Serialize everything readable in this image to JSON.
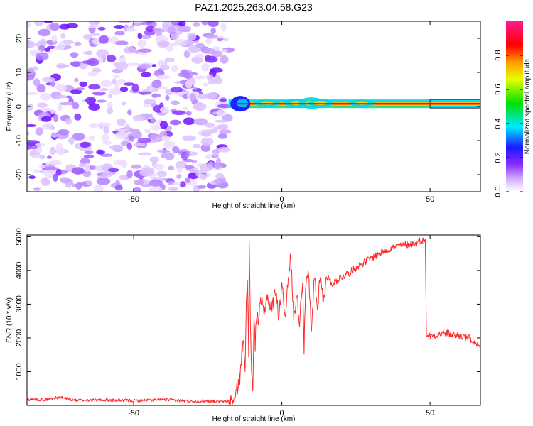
{
  "title": "PAZ1.2025.263.04.58.G23",
  "chart_data": [
    {
      "type": "heatmap",
      "name": "spectrogram",
      "xlabel": "Height of straight line (km)",
      "ylabel": "Frequency (Hz)",
      "xlim": [
        -86,
        67
      ],
      "ylim": [
        -25,
        25
      ],
      "xticks": [
        -50,
        0,
        50
      ],
      "xtick_labels": [
        "-50",
        "0",
        "50"
      ],
      "yticks": [
        -20,
        -10,
        0,
        10,
        20
      ],
      "ytick_labels": [
        "-20",
        "-10",
        "0",
        "10",
        "20"
      ],
      "noise_region_km": [
        -86,
        -18
      ],
      "signal_line": {
        "x_start_km": -18,
        "x_end_km": 67,
        "frequency_hz": 0.8,
        "peak_amplitude": 0.9,
        "narrow_beyond_km": 50
      },
      "colorbar": {
        "label": "Normalized spectral amplitude",
        "range": [
          0,
          1
        ],
        "ticks": [
          0.0,
          0.2,
          0.4,
          0.6,
          0.8
        ],
        "tick_labels": [
          "0.0",
          "0.2",
          "0.4",
          "0.6",
          "0.8"
        ],
        "colors": [
          "#ffffff",
          "#9a4dff",
          "#1a1aff",
          "#00e0ff",
          "#00e000",
          "#ffff00",
          "#ff9a00",
          "#ff0000",
          "#ff0099"
        ]
      }
    },
    {
      "type": "line",
      "name": "snr",
      "xlabel": "Height of straight line (km)",
      "ylabel": "SNR (10 * v/v)",
      "xlim": [
        -86,
        67
      ],
      "ylim": [
        0,
        5050
      ],
      "xticks": [
        -50,
        0,
        50
      ],
      "xtick_labels": [
        "-50",
        "0",
        "50"
      ],
      "yticks": [
        1000,
        2000,
        3000,
        4000,
        5000
      ],
      "ytick_labels": [
        "1000",
        "2000",
        "3000",
        "4000",
        "5000"
      ],
      "color": "#ff2a2a",
      "x": [
        -86,
        -80,
        -75,
        -70,
        -60,
        -50,
        -40,
        -30,
        -25,
        -20,
        -16,
        -14,
        -13,
        -12.4,
        -12,
        -11.6,
        -11.2,
        -11,
        -10.6,
        -10.2,
        -9.8,
        -9.4,
        -9,
        -8.5,
        -8,
        -7,
        -6,
        -5,
        -4,
        -3,
        -2,
        -1,
        0,
        1,
        2,
        3,
        4,
        5,
        6,
        7,
        7.5,
        8,
        9,
        10,
        11,
        12,
        13,
        14,
        15,
        17,
        20,
        23,
        26,
        30,
        35,
        40,
        45,
        47,
        48.4,
        48.8,
        50,
        55,
        60,
        63,
        65,
        67
      ],
      "values": [
        180,
        170,
        240,
        150,
        160,
        140,
        170,
        120,
        130,
        110,
        150,
        900,
        2100,
        1200,
        2900,
        3600,
        1500,
        4900,
        2400,
        1100,
        300,
        2500,
        1800,
        2800,
        2500,
        3100,
        2700,
        3300,
        2900,
        3000,
        3500,
        2500,
        3700,
        2700,
        3500,
        4450,
        2600,
        3300,
        2500,
        3800,
        1700,
        3500,
        3900,
        2100,
        3900,
        2800,
        4000,
        3000,
        3850,
        3600,
        3800,
        3950,
        4150,
        4350,
        4600,
        4750,
        4800,
        4900,
        4850,
        2100,
        2050,
        2150,
        2050,
        2000,
        1850,
        1650
      ]
    }
  ]
}
